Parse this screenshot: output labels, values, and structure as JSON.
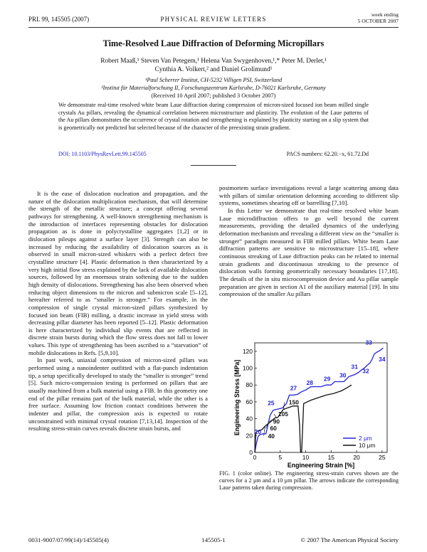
{
  "header": {
    "journal_ref": "PRL 99, 145505 (2007)",
    "journal_name": "PHYSICAL REVIEW LETTERS",
    "week_line1": "week ending",
    "week_line2": "5 OCTOBER 2007"
  },
  "title": "Time-Resolved Laue Diffraction of Deforming Micropillars",
  "authors_line1": "Robert Maaß,¹ Steven Van Petegem,¹ Helena Van Swygenhoven,¹,* Peter M. Derlet,¹",
  "authors_line2": "Cynthia A. Volkert,² and Daniel Grolimund¹",
  "affiliation1": "¹Paul Scherrer Institut, CH-5232 Villigen PSI, Switzerland",
  "affiliation2": "²Institut für Materialforschung II, Forschungszentrum Karlsruhe, D-76021 Karlsruhe, Germany",
  "received": "(Received 10 April 2007; published 3 October 2007)",
  "abstract": "We demonstrate real-time resolved white beam Laue diffraction during compression of micron-sized focused ion beam milled single crystals Au pillars, revealing the dynamical correlation between microstructure and plasticity. The evolution of the Laue patterns of the Au pillars demonstrates the occurrence of crystal rotation and strengthening is explained by plasticity starting on a slip system that is geometrically not predicted but selected because of the character of the preexisting strain gradient.",
  "doi": "DOI: 10.1103/PhysRevLett.99.145505",
  "pacs": "PACS numbers: 62.20.−x, 61.72.Dd",
  "col1_p1": "It is the ease of dislocation nucleation and propagation, and the nature of the dislocation multiplication mechanism, that will determine the strength of the metallic structure; a concept offering several pathways for strengthening. A well-known strengthening mechanism is the introduction of interfaces representing obstacles for dislocation propagation as is done in polycrystalline aggregates [1,2] or in dislocation pileups against a surface layer [3]. Strength can also be increased by reducing the availability of dislocation sources as is observed in small micron-sized whiskers with a perfect defect free crystalline structure [4]. Plastic deformation is then characterized by a very high initial flow stress explained by the lack of available dislocation sources, followed by an enormous strain softening due to the sudden high density of dislocations. Strengthening has also been observed when reducing object dimensions to the micron and submicron scale [5–12], hereafter referred to as “smaller is stronger.” For example, in the compression of single crystal micron-sized pillars synthesized by focused ion beam (FIB) milling, a drastic increase in yield stress with decreasing pillar diameter has been reported [5–12]. Plastic deformation is here characterized by individual slip events that are reflected in discrete strain bursts during which the flow stress does not fall to lower values. This type of strengthening has been ascribed to a “starvation” of mobile dislocations in Refs. [5,9,10].",
  "col1_p2": "In past work, uniaxial compression of micron-sized pillars was performed using a nanoindenter outfitted with a flat-punch indentation tip, a setup specifically developed to study the “smaller is stronger” trend [5]. Such micro-compression testing is performed on pillars that are usually machined from a bulk material using a FIB. In this geometry one end of the pillar remains part of the bulk material, while the other is a free surface. Assuming low friction contact conditions between the indenter and pillar, the compression axis is expected to rotate unconstrained with minimal crystal rotation [7,13,14]. Inspection of the resulting stress-strain curves reveals discrete strain bursts, and",
  "col2_p1": "postmortem surface investigations reveal a large scattering among data with pillars of similar orientation deforming according to different slip systems, sometimes shearing off or barrelling [7,10].",
  "col2_p2": "In this Letter we demonstrate that real-time resolved white beam Laue microdiffraction offers to go well beyond the current measurements, providing the detailed dynamics of the underlying deformation mechanism and revealing a different view on the “smaller is stronger” paradigm measured in FIB milled pillars. White beam Laue diffraction patterns are sensitive to microstructure [15–18], where continuous streaking of Laue diffraction peaks can be related to internal strain gradients and discontinuous streaking to the presence of dislocation walls forming geometrically necessary boundaries [17,18]. The details of the in situ microcompression device and Au pillar sample preparation are given in section A1 of the auxiliary material [19]. In situ compression of the smaller Au pillars",
  "caption": "FIG. 1 (color online). The engineering stress-strain curves shown are the curves for a 2 μm and a 10 μm pillar. The arrows indicate the corresponding Laue patterns taken during compression.",
  "footer": {
    "left": "0031-9007/07/99(14)/145505(4)",
    "center": "145505-1",
    "right": "© 2007 The American Physical Society"
  },
  "chart_data": {
    "type": "line",
    "xlabel": "Engineering Strain [%]",
    "ylabel": "Engineering Stress [MPa]",
    "xlim": [
      0,
      26
    ],
    "ylim": [
      0,
      130
    ],
    "xticks": [
      0,
      5,
      10,
      15,
      20,
      25
    ],
    "yticks": [
      0,
      20,
      40,
      60,
      80,
      100,
      120
    ],
    "legend_position": "bottom-right",
    "series": [
      {
        "name": "2 μm",
        "color": "#2323d8",
        "x": [
          0,
          0.3,
          0.6,
          0.8,
          1.0,
          1.6,
          2.2,
          3.0,
          3.6,
          4.2,
          5.0,
          5.5,
          6.2,
          6.8,
          7.6,
          8.4,
          9.2,
          10.0,
          11.0,
          12.0,
          13.0,
          14.0,
          15.0,
          15.7,
          16.5,
          17.5,
          18.5,
          19.5,
          20.4,
          21.0,
          21.5,
          22.0,
          22.6,
          23.0,
          23.5,
          24.0,
          24.6,
          25.2
        ],
        "y": [
          0,
          10,
          18,
          20,
          21,
          22,
          22,
          44,
          50,
          51,
          52,
          53,
          58,
          68,
          68,
          69,
          72,
          74,
          78,
          78,
          78,
          80,
          80,
          84,
          84,
          84,
          90,
          92,
          95,
          98,
          100,
          103,
          106,
          110,
          117,
          119,
          121,
          124
        ]
      },
      {
        "name": "10 μm",
        "color": "#111111",
        "x": [
          0,
          0.2,
          0.4,
          1.0,
          1.4,
          2.0,
          2.6,
          3.2,
          3.6,
          4.0,
          4.3,
          4.6,
          5.0,
          5.6,
          6.5,
          7.5,
          8.5,
          8.8,
          8.9,
          9.0,
          9.2,
          9.6,
          11.0,
          12.5,
          14.0,
          15.5,
          17.0,
          18.2,
          19.0
        ],
        "y": [
          0,
          22,
          25,
          26,
          27,
          31,
          34,
          37,
          39,
          41,
          41,
          42,
          46,
          51,
          53,
          55,
          55,
          32,
          14,
          0,
          0,
          58,
          62,
          65,
          68,
          70,
          73,
          77,
          80
        ]
      }
    ],
    "annotations_blue": [
      "20",
      "25",
      "27",
      "28",
      "29",
      "30",
      "31",
      "32",
      "33",
      "34"
    ],
    "annotations_black": [
      "150",
      "105",
      "90",
      "60",
      "40"
    ]
  }
}
